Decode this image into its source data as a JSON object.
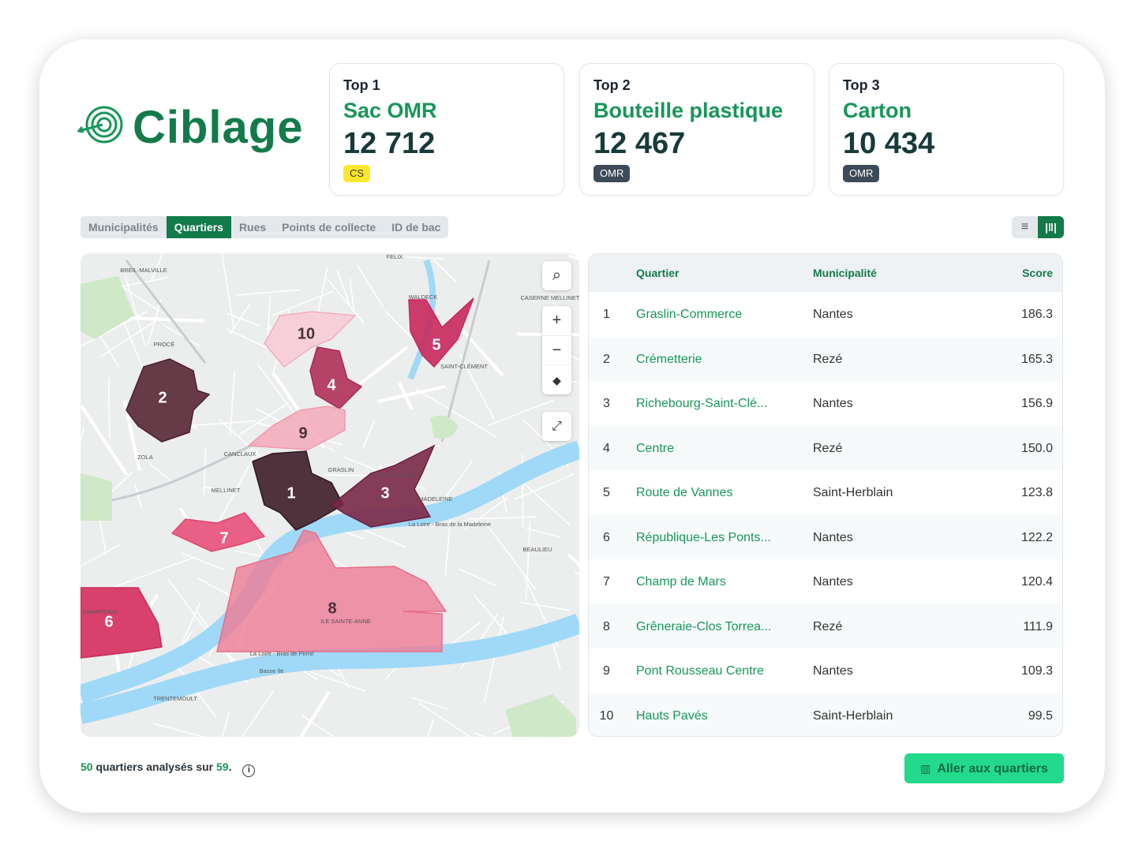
{
  "brand": "Ciblage",
  "top_cards": [
    {
      "rank": "Top 1",
      "name": "Sac OMR",
      "value": "12 712",
      "tag": "CS"
    },
    {
      "rank": "Top 2",
      "name": "Bouteille plastique",
      "value": "12 467",
      "tag": "OMR"
    },
    {
      "rank": "Top 3",
      "name": "Carton",
      "value": "10 434",
      "tag": "OMR"
    }
  ],
  "tabs": [
    "Municipalités",
    "Quartiers",
    "Rues",
    "Points de collecte",
    "ID de bac"
  ],
  "active_tab": 1,
  "map": {
    "zones": [
      "1",
      "2",
      "3",
      "4",
      "5",
      "6",
      "7",
      "8",
      "9",
      "10"
    ],
    "places": [
      "BREIL-MALVILLE",
      "FELIX",
      "WALDECK",
      "CASERNE MELLINET",
      "PROCÉ",
      "SAINT-CLÉMENT",
      "ZOLA",
      "CANCLAUX",
      "MELLINET",
      "GRASLIN",
      "ILE FEYDEAU",
      "MADELEINE",
      "BEAULIEU",
      "CHANTENAY",
      "ILE SAINTE-ANNE",
      "Basse île",
      "TRENTEMOULT",
      "La Loire - Bras de Pirmil",
      "La Loire - Bras de la Madeleine"
    ]
  },
  "table": {
    "headers": [
      "Quartier",
      "Municipalité",
      "Score"
    ],
    "rows": [
      [
        "1",
        "Graslin-Commerce",
        "Nantes",
        "186.3"
      ],
      [
        "2",
        "Crémetterie",
        "Rezé",
        "165.3"
      ],
      [
        "3",
        "Richebourg-Saint-Clé...",
        "Nantes",
        "156.9"
      ],
      [
        "4",
        "Centre",
        "Rezé",
        "150.0"
      ],
      [
        "5",
        "Route de Vannes",
        "Saint-Herblain",
        "123.8"
      ],
      [
        "6",
        "République-Les Ponts...",
        "Nantes",
        "122.2"
      ],
      [
        "7",
        "Champ de Mars",
        "Nantes",
        "120.4"
      ],
      [
        "8",
        "Grêneraie-Clos Torrea...",
        "Rezé",
        "111.9"
      ],
      [
        "9",
        "Pont Rousseau Centre",
        "Nantes",
        "109.3"
      ],
      [
        "10",
        "Hauts Pavés",
        "Saint-Herblain",
        "99.5"
      ]
    ]
  },
  "footer": {
    "count": "50",
    "text": "quartiers analysés sur",
    "total": "59",
    "suffix": "."
  },
  "button": "Aller aux quartiers"
}
